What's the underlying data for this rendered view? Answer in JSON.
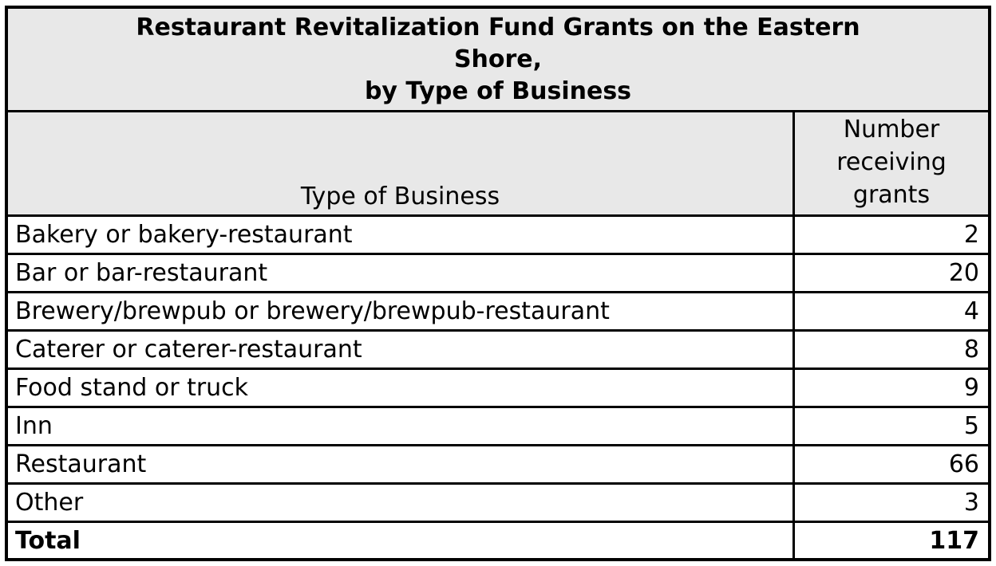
{
  "chart_data": {
    "type": "table",
    "title": "Restaurant Revitalization Fund Grants on the Eastern Shore, by Type of Business",
    "columns": [
      "Type of Business",
      "Number receiving grants"
    ],
    "categories": [
      "Bakery or bakery-restaurant",
      "Bar or bar-restaurant",
      "Brewery/brewpub or brewery/brewpub-restaurant",
      "Caterer or caterer-restaurant",
      "Food stand or truck",
      "Inn",
      "Restaurant",
      "Other"
    ],
    "values": [
      2,
      20,
      4,
      8,
      9,
      5,
      66,
      3
    ],
    "total_label": "Total",
    "total_value": 117,
    "layout_hints": {
      "title_bg": "#e8e8e8",
      "header_bg": "#e8e8e8",
      "border_color": "#000000",
      "value_alignment": "right",
      "label_alignment": "left"
    }
  },
  "table": {
    "title_lines": {
      "0": "Restaurant Revitalization Fund Grants on the Eastern",
      "1": "Shore,",
      "2": "by Type of Business"
    },
    "header": {
      "col1": "Type of Business",
      "col2": "Number\nreceiving\ngrants"
    },
    "rows": [
      {
        "label": "Bakery or bakery-restaurant",
        "value": "2"
      },
      {
        "label": "Bar or bar-restaurant",
        "value": "20"
      },
      {
        "label": "Brewery/brewpub or brewery/brewpub-restaurant",
        "value": "4"
      },
      {
        "label": "Caterer or caterer-restaurant",
        "value": "8"
      },
      {
        "label": "Food stand or truck",
        "value": "9"
      },
      {
        "label": "Inn",
        "value": "5"
      },
      {
        "label": "Restaurant",
        "value": "66"
      },
      {
        "label": "Other",
        "value": "3"
      }
    ],
    "total": {
      "label": "Total",
      "value": "117"
    }
  }
}
